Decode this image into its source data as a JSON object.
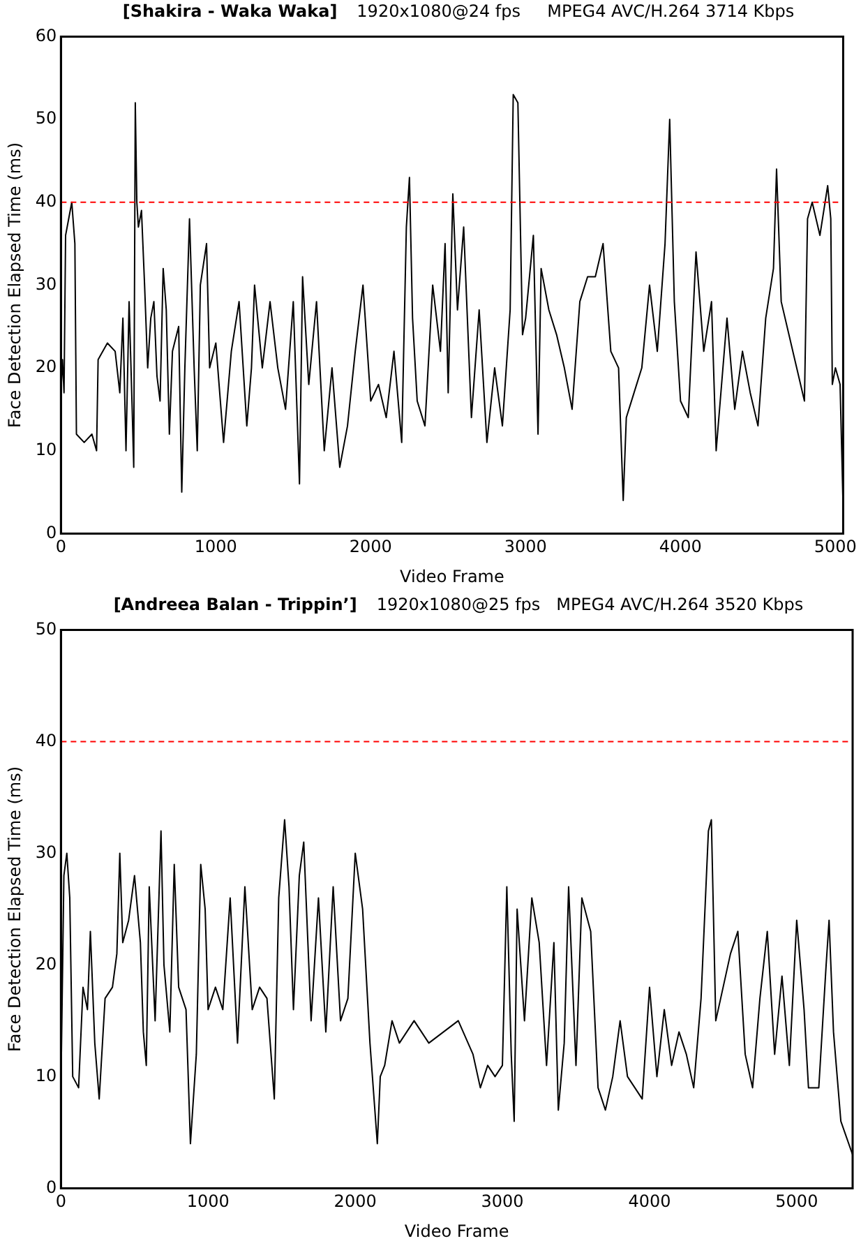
{
  "chart_data": [
    {
      "type": "line",
      "title": "[Shakira - Waka Waka]",
      "subtitle": "1920x1080@24 fps     MPEG4 AVC/H.264 3714 Kbps",
      "xlabel": "Video Frame",
      "ylabel": "Face Detection Elapsed Time (ms)",
      "xlim": [
        0,
        5050
      ],
      "xticks": [
        0,
        1000,
        2000,
        3000,
        4000,
        5000
      ],
      "ylim": [
        0,
        60
      ],
      "yticks": [
        0,
        10,
        20,
        30,
        40,
        50,
        60
      ],
      "grid": false,
      "legend": false,
      "marker": "none",
      "line_style": "solid",
      "ref_lines": [
        {
          "axis": "y",
          "value": 40,
          "color": "#ff0000",
          "line_style": "dashed"
        }
      ],
      "series": [
        {
          "color": "#000000",
          "x": [
            0,
            10,
            20,
            30,
            50,
            70,
            90,
            100,
            150,
            200,
            230,
            240,
            300,
            350,
            380,
            400,
            420,
            440,
            460,
            470,
            480,
            490,
            500,
            520,
            540,
            560,
            580,
            600,
            620,
            640,
            660,
            680,
            700,
            720,
            760,
            780,
            800,
            830,
            860,
            880,
            900,
            940,
            960,
            1000,
            1050,
            1100,
            1150,
            1200,
            1230,
            1250,
            1300,
            1350,
            1400,
            1450,
            1500,
            1540,
            1560,
            1600,
            1650,
            1700,
            1750,
            1800,
            1850,
            1900,
            1950,
            2000,
            2050,
            2100,
            2150,
            2200,
            2230,
            2250,
            2270,
            2300,
            2350,
            2400,
            2450,
            2480,
            2500,
            2530,
            2560,
            2600,
            2650,
            2700,
            2750,
            2800,
            2850,
            2900,
            2920,
            2950,
            2980,
            3000,
            3050,
            3080,
            3100,
            3150,
            3200,
            3250,
            3300,
            3350,
            3400,
            3450,
            3500,
            3550,
            3600,
            3630,
            3650,
            3700,
            3750,
            3800,
            3850,
            3900,
            3930,
            3960,
            4000,
            4050,
            4100,
            4150,
            4200,
            4230,
            4300,
            4350,
            4400,
            4450,
            4500,
            4550,
            4600,
            4620,
            4650,
            4700,
            4750,
            4800,
            4820,
            4850,
            4900,
            4950,
            4970,
            4980,
            5000,
            5030,
            5050
          ],
          "values": [
            17,
            21,
            17,
            36,
            38,
            40,
            35,
            12,
            11,
            12,
            10,
            21,
            23,
            22,
            17,
            26,
            10,
            28,
            15,
            8,
            52,
            40,
            37,
            39,
            30,
            20,
            26,
            28,
            19,
            16,
            32,
            27,
            12,
            22,
            25,
            5,
            20,
            38,
            20,
            10,
            30,
            35,
            20,
            23,
            11,
            22,
            28,
            13,
            20,
            30,
            20,
            28,
            20,
            15,
            28,
            6,
            31,
            18,
            28,
            10,
            20,
            8,
            13,
            22,
            30,
            16,
            18,
            14,
            22,
            11,
            37,
            43,
            26,
            16,
            13,
            30,
            22,
            35,
            17,
            41,
            27,
            37,
            14,
            27,
            11,
            20,
            13,
            27,
            53,
            52,
            24,
            26,
            36,
            12,
            32,
            27,
            24,
            20,
            15,
            28,
            31,
            31,
            35,
            22,
            20,
            4,
            14,
            17,
            20,
            30,
            22,
            35,
            50,
            28,
            16,
            14,
            34,
            22,
            28,
            10,
            26,
            15,
            22,
            17,
            13,
            26,
            32,
            44,
            28,
            24,
            20,
            16,
            38,
            40,
            36,
            42,
            38,
            18,
            20,
            18,
            3
          ]
        }
      ]
    },
    {
      "type": "line",
      "title": "[Andreea Balan - Trippin’]",
      "subtitle": "1920x1080@25 fps   MPEG4 AVC/H.264 3520 Kbps",
      "xlabel": "Video Frame",
      "ylabel": "Face Detection Elapsed Time (ms)",
      "xlim": [
        0,
        5380
      ],
      "xticks": [
        0,
        1000,
        2000,
        3000,
        4000,
        5000
      ],
      "ylim": [
        0,
        50
      ],
      "yticks": [
        0,
        10,
        20,
        30,
        40,
        50
      ],
      "grid": false,
      "legend": false,
      "marker": "none",
      "line_style": "solid",
      "ref_lines": [
        {
          "axis": "y",
          "value": 40,
          "color": "#ff0000",
          "line_style": "dashed"
        }
      ],
      "series": [
        {
          "color": "#000000",
          "x": [
            0,
            20,
            40,
            60,
            80,
            120,
            150,
            180,
            200,
            230,
            260,
            300,
            350,
            380,
            400,
            420,
            460,
            500,
            540,
            560,
            580,
            600,
            640,
            680,
            700,
            740,
            770,
            800,
            850,
            880,
            920,
            950,
            980,
            1000,
            1050,
            1100,
            1150,
            1200,
            1250,
            1300,
            1350,
            1400,
            1450,
            1480,
            1520,
            1550,
            1580,
            1620,
            1650,
            1700,
            1750,
            1800,
            1850,
            1900,
            1950,
            2000,
            2050,
            2100,
            2150,
            2170,
            2200,
            2250,
            2300,
            2400,
            2500,
            2600,
            2700,
            2800,
            2850,
            2900,
            2950,
            3000,
            3030,
            3060,
            3080,
            3100,
            3150,
            3200,
            3250,
            3300,
            3350,
            3380,
            3420,
            3450,
            3500,
            3540,
            3600,
            3650,
            3700,
            3750,
            3800,
            3850,
            3900,
            3950,
            4000,
            4050,
            4100,
            4150,
            4200,
            4250,
            4300,
            4350,
            4400,
            4420,
            4450,
            4500,
            4550,
            4600,
            4650,
            4700,
            4750,
            4800,
            4850,
            4900,
            4950,
            5000,
            5050,
            5080,
            5150,
            5200,
            5220,
            5250,
            5300,
            5380
          ],
          "values": [
            9,
            28,
            30,
            26,
            10,
            9,
            18,
            16,
            23,
            13,
            8,
            17,
            18,
            21,
            30,
            22,
            24,
            28,
            22,
            14,
            11,
            27,
            15,
            32,
            20,
            14,
            29,
            18,
            16,
            4,
            12,
            29,
            25,
            16,
            18,
            16,
            26,
            13,
            27,
            16,
            18,
            17,
            8,
            26,
            33,
            27,
            16,
            28,
            31,
            15,
            26,
            14,
            27,
            15,
            17,
            30,
            25,
            13,
            4,
            10,
            11,
            15,
            13,
            15,
            13,
            14,
            15,
            12,
            9,
            11,
            10,
            11,
            27,
            12,
            6,
            25,
            15,
            26,
            22,
            11,
            22,
            7,
            13,
            27,
            11,
            26,
            23,
            9,
            7,
            10,
            15,
            10,
            9,
            8,
            18,
            10,
            16,
            11,
            14,
            12,
            9,
            17,
            32,
            33,
            15,
            18,
            21,
            23,
            12,
            9,
            17,
            23,
            12,
            19,
            11,
            24,
            16,
            9,
            9,
            20,
            24,
            14,
            6,
            3
          ]
        }
      ]
    }
  ]
}
